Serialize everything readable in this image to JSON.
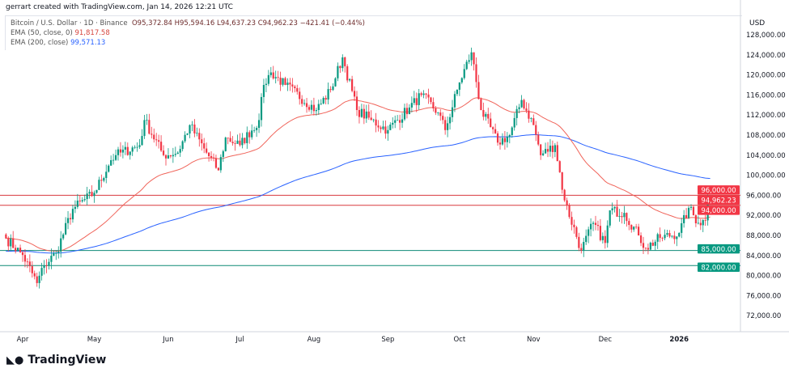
{
  "header": {
    "credit": "gerrart created with TradingView.com, Jan 14, 2026 12:21 UTC"
  },
  "legend": {
    "symbol": "Bitcoin / U.S. Dollar · 1D · Binance",
    "open": "O95,372.84",
    "high": "H95,594.16",
    "low": "L94,637.23",
    "close": "C94,962.23",
    "change": "−421.41 (−0.44%)",
    "ema50_label": "EMA (50, close, 0)",
    "ema50_value": "91,817.58",
    "ema200_label": "EMA (200, close)",
    "ema200_value": "99,571.13"
  },
  "logo": "TradingView",
  "colors": {
    "up": "#089981",
    "down": "#f23645",
    "ema50": "#f0645a",
    "ema200": "#2962ff",
    "resistance": "#d83a3f",
    "support": "#0e8a77"
  },
  "chart_data": {
    "type": "candlestick",
    "currency": "USD",
    "ylim": [
      70000,
      130000
    ],
    "y_ticks": [
      72000,
      76000,
      80000,
      84000,
      88000,
      92000,
      96000,
      100000,
      104000,
      108000,
      112000,
      116000,
      120000,
      124000,
      128000
    ],
    "x_ticks": [
      {
        "date": "2025-04-01",
        "label": "Apr"
      },
      {
        "date": "2025-05-01",
        "label": "May"
      },
      {
        "date": "2025-06-01",
        "label": "Jun"
      },
      {
        "date": "2025-07-01",
        "label": "Jul"
      },
      {
        "date": "2025-08-01",
        "label": "Aug"
      },
      {
        "date": "2025-09-01",
        "label": "Sep"
      },
      {
        "date": "2025-10-01",
        "label": "Oct"
      },
      {
        "date": "2025-11-01",
        "label": "Nov"
      },
      {
        "date": "2025-12-01",
        "label": "Dec"
      },
      {
        "date": "2026-01-01",
        "label": "2026"
      }
    ],
    "approx_closes": [
      [
        "2025-03-25",
        87400
      ],
      [
        "2025-04-01",
        84100
      ],
      [
        "2025-04-07",
        78500
      ],
      [
        "2025-04-10",
        82000
      ],
      [
        "2025-04-15",
        84500
      ],
      [
        "2025-04-22",
        93300
      ],
      [
        "2025-05-01",
        96500
      ],
      [
        "2025-05-08",
        103000
      ],
      [
        "2025-05-10",
        104000
      ],
      [
        "2025-05-20",
        106000
      ],
      [
        "2025-05-22",
        111000
      ],
      [
        "2025-05-30",
        104000
      ],
      [
        "2025-06-05",
        104500
      ],
      [
        "2025-06-10",
        110000
      ],
      [
        "2025-06-17",
        104500
      ],
      [
        "2025-06-22",
        101000
      ],
      [
        "2025-06-25",
        107500
      ],
      [
        "2025-07-01",
        106000
      ],
      [
        "2025-07-09",
        111000
      ],
      [
        "2025-07-11",
        118000
      ],
      [
        "2025-07-14",
        120500
      ],
      [
        "2025-07-20",
        118000
      ],
      [
        "2025-08-02",
        113000
      ],
      [
        "2025-08-08",
        117000
      ],
      [
        "2025-08-13",
        123500
      ],
      [
        "2025-08-19",
        113000
      ],
      [
        "2025-08-25",
        111000
      ],
      [
        "2025-09-01",
        109000
      ],
      [
        "2025-09-10",
        113500
      ],
      [
        "2025-09-15",
        116000
      ],
      [
        "2025-09-22",
        112500
      ],
      [
        "2025-09-25",
        109000
      ],
      [
        "2025-10-01",
        118500
      ],
      [
        "2025-10-06",
        124500
      ],
      [
        "2025-10-10",
        113000
      ],
      [
        "2025-10-17",
        106500
      ],
      [
        "2025-10-22",
        108000
      ],
      [
        "2025-10-27",
        115000
      ],
      [
        "2025-11-01",
        110000
      ],
      [
        "2025-11-04",
        104000
      ],
      [
        "2025-11-10",
        106000
      ],
      [
        "2025-11-14",
        95000
      ],
      [
        "2025-11-21",
        85000
      ],
      [
        "2025-11-26",
        90500
      ],
      [
        "2025-12-01",
        86500
      ],
      [
        "2025-12-03",
        93000
      ],
      [
        "2025-12-09",
        92500
      ],
      [
        "2025-12-15",
        88000
      ],
      [
        "2025-12-18",
        85500
      ],
      [
        "2025-12-24",
        87500
      ],
      [
        "2026-01-01",
        88500
      ],
      [
        "2026-01-05",
        93500
      ],
      [
        "2026-01-09",
        90500
      ],
      [
        "2026-01-12",
        91000
      ],
      [
        "2026-01-13",
        95400
      ],
      [
        "2026-01-14",
        94962.23
      ]
    ],
    "horizontal_levels": [
      {
        "price": 96000,
        "label": "96,000.00",
        "kind": "resistance"
      },
      {
        "price": 94000,
        "label": "94,000.00",
        "kind": "resistance"
      },
      {
        "price": 85000,
        "label": "85,000.00",
        "kind": "support"
      },
      {
        "price": 82000,
        "label": "82,000.00",
        "kind": "support"
      }
    ],
    "last_price_label": "94,962.23"
  }
}
